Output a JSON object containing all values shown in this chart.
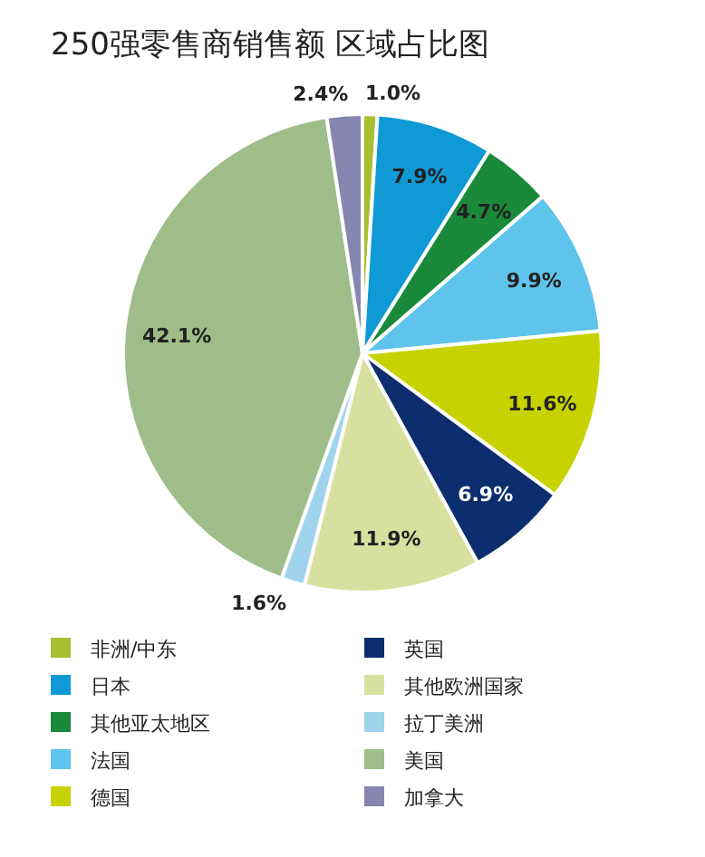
{
  "chart_data": {
    "type": "pie",
    "title": "250强零售商销售额  区域占比图",
    "categories": [
      "非洲/中东",
      "日本",
      "其他亚太地区",
      "法国",
      "德国",
      "英国",
      "其他欧洲国家",
      "拉丁美洲",
      "美国",
      "加拿大"
    ],
    "values": [
      1.0,
      7.9,
      4.7,
      9.9,
      11.6,
      6.9,
      11.9,
      1.6,
      42.1,
      2.4
    ],
    "colors": [
      "#a8c030",
      "#0f9ad6",
      "#1a8a3a",
      "#5ec4ec",
      "#c8d200",
      "#0d2e6e",
      "#d8e0a0",
      "#a0d4ec",
      "#9ebd88",
      "#8686b0"
    ],
    "value_labels": [
      "1.0%",
      "7.9%",
      "4.7%",
      "9.9%",
      "11.6%",
      "6.9%",
      "11.9%",
      "1.6%",
      "42.1%",
      "2.4%"
    ],
    "legend": "bottom"
  }
}
